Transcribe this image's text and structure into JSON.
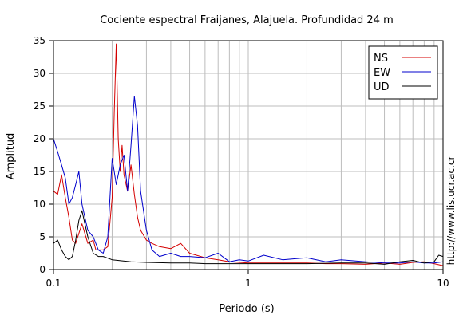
{
  "chart_data": {
    "type": "line",
    "title": "Cociente espectral Fraijanes, Alajuela. Profundidad 24 m",
    "xlabel": "Periodo (s)",
    "ylabel": "Amplitud",
    "x_scale": "log",
    "xlim": [
      0.1,
      10
    ],
    "ylim": [
      0,
      35
    ],
    "x_ticks": [
      "0.1",
      "1",
      "10"
    ],
    "y_ticks": [
      "0",
      "5",
      "10",
      "15",
      "20",
      "25",
      "30",
      "35"
    ],
    "grid": true,
    "legend_position": "top-right",
    "watermark": "http://www.lis.ucr.ac.cr",
    "series": [
      {
        "name": "NS",
        "color": "#d40000",
        "x": [
          0.1,
          0.105,
          0.11,
          0.115,
          0.12,
          0.125,
          0.13,
          0.14,
          0.15,
          0.16,
          0.165,
          0.17,
          0.18,
          0.19,
          0.2,
          0.205,
          0.21,
          0.215,
          0.22,
          0.225,
          0.23,
          0.24,
          0.25,
          0.26,
          0.27,
          0.28,
          0.3,
          0.32,
          0.35,
          0.4,
          0.45,
          0.5,
          0.6,
          0.7,
          0.8,
          1.0,
          1.2,
          1.5,
          2.0,
          2.5,
          3.0,
          4.0,
          5.0,
          6.0,
          7.0,
          8.0,
          9.0,
          10.0
        ],
        "values": [
          12,
          11.5,
          14.5,
          11,
          8,
          4.5,
          4,
          7,
          4,
          4.5,
          3,
          3,
          3,
          3.5,
          11,
          24,
          34.5,
          20,
          15,
          19,
          14.5,
          12,
          16,
          11.5,
          8,
          6,
          4.5,
          4,
          3.5,
          3.2,
          4,
          2.5,
          1.8,
          1.5,
          1.2,
          1.0,
          1.0,
          1.0,
          1.0,
          0.9,
          0.9,
          0.8,
          1.0,
          0.8,
          1.1,
          1.2,
          0.9,
          0.6
        ]
      },
      {
        "name": "EW",
        "color": "#0000cc",
        "x": [
          0.1,
          0.105,
          0.11,
          0.115,
          0.12,
          0.125,
          0.13,
          0.135,
          0.14,
          0.15,
          0.16,
          0.17,
          0.18,
          0.19,
          0.2,
          0.21,
          0.22,
          0.23,
          0.24,
          0.25,
          0.26,
          0.27,
          0.28,
          0.3,
          0.32,
          0.35,
          0.4,
          0.45,
          0.5,
          0.6,
          0.7,
          0.8,
          0.9,
          1.0,
          1.2,
          1.5,
          2.0,
          2.5,
          3.0,
          4.0,
          5.0,
          6.0,
          7.0,
          8.0,
          9.0,
          10.0
        ],
        "values": [
          20,
          18,
          16,
          14,
          10,
          11,
          13,
          15,
          10,
          6,
          5,
          3,
          2.5,
          5,
          17,
          13,
          16,
          17.5,
          12,
          19,
          26.5,
          22,
          12,
          6,
          3,
          2,
          2.5,
          2,
          2,
          1.8,
          2.5,
          1.2,
          1.5,
          1.3,
          2.2,
          1.5,
          1.8,
          1.2,
          1.5,
          1.2,
          1.0,
          1.0,
          1.2,
          1.0,
          1.0,
          1.2
        ]
      },
      {
        "name": "UD",
        "color": "#000000",
        "x": [
          0.1,
          0.105,
          0.11,
          0.115,
          0.12,
          0.125,
          0.13,
          0.135,
          0.14,
          0.15,
          0.16,
          0.17,
          0.18,
          0.2,
          0.25,
          0.3,
          0.4,
          0.5,
          0.6,
          0.8,
          1.0,
          1.5,
          2.0,
          3.0,
          4.0,
          5.0,
          6.0,
          7.0,
          8.0,
          9.0,
          9.5,
          10.0
        ],
        "values": [
          4,
          4.5,
          3,
          2,
          1.5,
          2,
          4.5,
          7.5,
          9,
          5,
          2.5,
          2,
          2,
          1.5,
          1.2,
          1.1,
          1.0,
          1.0,
          0.9,
          0.9,
          0.9,
          0.9,
          0.9,
          1.0,
          1.0,
          0.8,
          1.2,
          1.4,
          1.0,
          1.2,
          2.2,
          2.0
        ]
      }
    ]
  }
}
